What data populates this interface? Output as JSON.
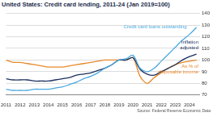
{
  "chart_data": {
    "type": "line",
    "title": "United States: Credit card lending, 2011-24 (Jan 2019=100)",
    "source": "Source: Federal Reserve Economic Data",
    "x": [
      2011,
      2011.5,
      2012,
      2012.5,
      2013,
      2013.5,
      2014,
      2014.5,
      2015,
      2015.5,
      2016,
      2016.5,
      2017,
      2017.5,
      2018,
      2018.5,
      2019,
      2019.5,
      2020,
      2020.5,
      2021,
      2021.5,
      2022,
      2022.5,
      2023,
      2023.5,
      2024,
      2024.5
    ],
    "series": [
      {
        "name": "Credit card loans outstanding",
        "color": "#4aa8e0",
        "values": [
          75,
          74,
          74,
          74,
          75,
          75,
          75,
          76,
          77,
          79,
          81,
          84,
          86,
          89,
          93,
          96,
          100,
          101,
          104,
          93,
          90,
          93,
          99,
          105,
          111,
          117,
          122,
          128
        ]
      },
      {
        "name": "Inflation adjusted",
        "color": "#1b2f5e",
        "values": [
          84,
          83,
          83,
          83,
          82,
          82,
          82,
          83,
          84,
          85,
          87,
          88,
          89,
          91,
          93,
          96,
          100,
          100,
          102,
          92,
          88,
          87,
          90,
          93,
          96,
          100,
          103,
          105
        ]
      },
      {
        "name": "As % of disposable income",
        "color": "#e8892b",
        "values": [
          100,
          98,
          98,
          97,
          96,
          95,
          94,
          94,
          94,
          95,
          96,
          97,
          98,
          99,
          100,
          100,
          100,
          100,
          102,
          86,
          80,
          85,
          89,
          93,
          96,
          98,
          99,
          100
        ]
      }
    ],
    "xlim": [
      2011,
      2024.75
    ],
    "xticks": [
      2011,
      2012,
      2013,
      2014,
      2015,
      2016,
      2017,
      2018,
      2019,
      2020,
      2021,
      2022,
      2023,
      2024
    ],
    "ylim": [
      70,
      140
    ],
    "yticks": [
      70,
      80,
      90,
      100,
      110,
      120,
      130,
      140
    ],
    "grid": true
  }
}
